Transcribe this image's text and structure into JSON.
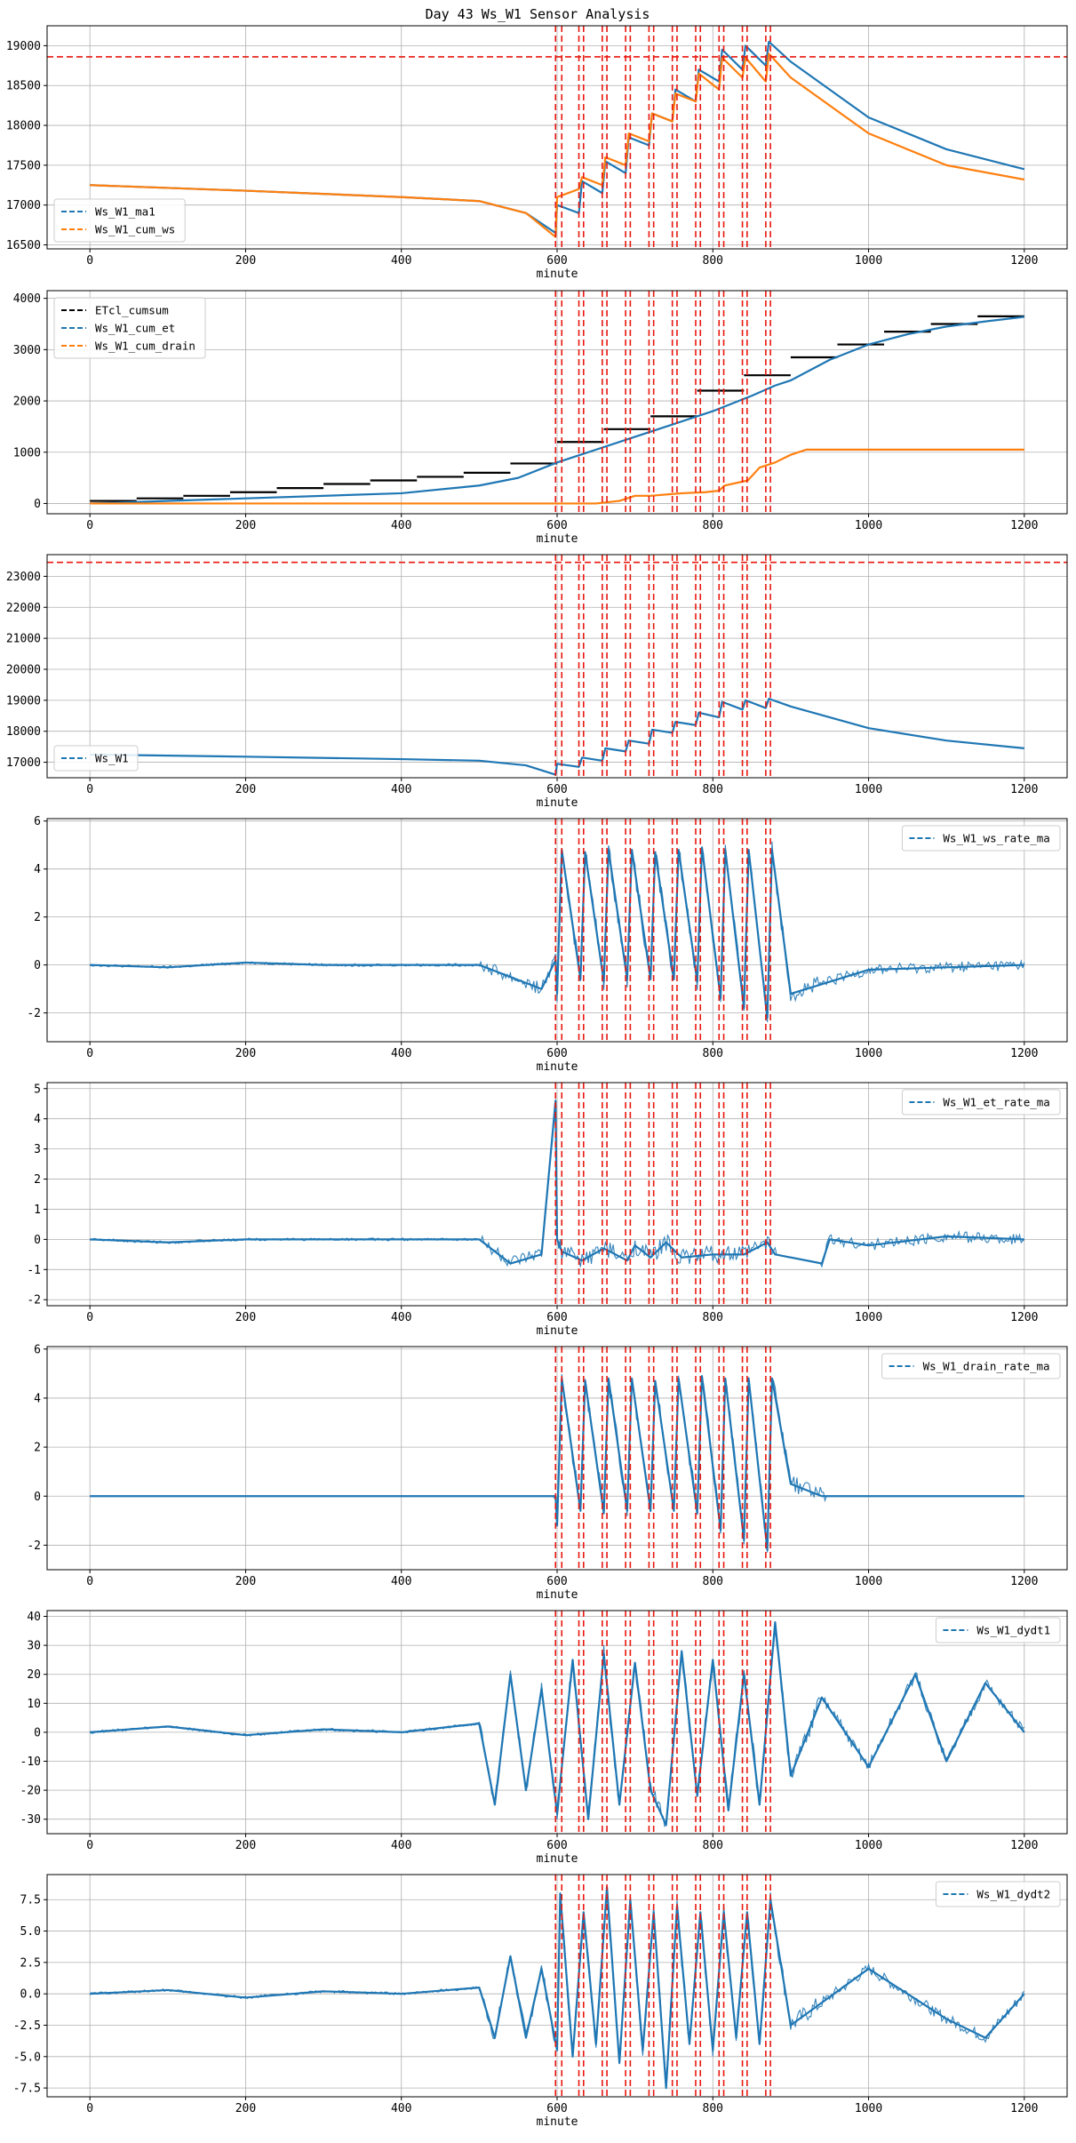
{
  "figure_title": "Day 43 Ws_W1 Sensor Analysis",
  "colors": {
    "blue": "#1f77b4",
    "orange": "#ff7f0e",
    "black": "#000000",
    "red": "#e8170f",
    "grid": "#b0b0b0"
  },
  "event_lines": [
    598,
    606,
    628,
    634,
    658,
    664,
    688,
    694,
    718,
    724,
    748,
    754,
    778,
    784,
    808,
    814,
    838,
    844,
    868,
    874
  ],
  "chart_data": [
    {
      "type": "line",
      "xlabel": "minute",
      "xlim": [
        -55,
        1255
      ],
      "ylim": [
        16450,
        19250
      ],
      "xticks": [
        0,
        200,
        400,
        600,
        800,
        1000,
        1200
      ],
      "xtick_labels": [
        "0",
        "200",
        "400",
        "600",
        "800",
        "1000",
        "1200"
      ],
      "yticks": [
        16500,
        17000,
        17500,
        18000,
        18500,
        19000
      ],
      "ytick_labels": [
        "16500",
        "17000",
        "17500",
        "18000",
        "18500",
        "19000"
      ],
      "hlines": [
        18860
      ],
      "legend": "lower-left",
      "series": [
        {
          "name": "Ws_W1_ma1",
          "color": "blue",
          "x": [
            0,
            200,
            400,
            500,
            560,
            598,
            600,
            628,
            632,
            658,
            662,
            688,
            692,
            718,
            722,
            748,
            752,
            778,
            782,
            808,
            812,
            838,
            842,
            868,
            872,
            900,
            1000,
            1100,
            1200
          ],
          "y": [
            17250,
            17180,
            17100,
            17050,
            16900,
            16650,
            17000,
            16900,
            17300,
            17150,
            17550,
            17400,
            17850,
            17750,
            18150,
            18050,
            18450,
            18300,
            18700,
            18550,
            18950,
            18700,
            19000,
            18750,
            19050,
            18800,
            18100,
            17700,
            17450
          ]
        },
        {
          "name": "Ws_W1_cum_ws",
          "color": "orange",
          "x": [
            0,
            200,
            400,
            500,
            560,
            598,
            600,
            628,
            632,
            658,
            662,
            688,
            692,
            718,
            722,
            748,
            752,
            778,
            782,
            808,
            812,
            838,
            842,
            868,
            872,
            900,
            1000,
            1100,
            1200
          ],
          "y": [
            17250,
            17180,
            17100,
            17050,
            16900,
            16600,
            17100,
            17200,
            17350,
            17250,
            17600,
            17500,
            17900,
            17800,
            18150,
            18050,
            18400,
            18300,
            18650,
            18450,
            18850,
            18600,
            18850,
            18550,
            18900,
            18600,
            17900,
            17500,
            17320
          ]
        }
      ]
    },
    {
      "type": "line",
      "xlabel": "minute",
      "xlim": [
        -55,
        1255
      ],
      "ylim": [
        -200,
        4150
      ],
      "xticks": [
        0,
        200,
        400,
        600,
        800,
        1000,
        1200
      ],
      "xtick_labels": [
        "0",
        "200",
        "400",
        "600",
        "800",
        "1000",
        "1200"
      ],
      "yticks": [
        0,
        1000,
        2000,
        3000,
        4000
      ],
      "ytick_labels": [
        "0",
        "1000",
        "2000",
        "3000",
        "4000"
      ],
      "hlines": [],
      "legend": "upper-left",
      "series": [
        {
          "name": "ETcl_cumsum",
          "color": "black",
          "step": true,
          "x": [
            0,
            60,
            120,
            180,
            240,
            300,
            360,
            420,
            480,
            540,
            600,
            660,
            720,
            780,
            840,
            900,
            960,
            1020,
            1080,
            1140,
            1200
          ],
          "y": [
            50,
            100,
            150,
            220,
            300,
            380,
            450,
            520,
            600,
            780,
            1200,
            1450,
            1700,
            2200,
            2500,
            2850,
            3100,
            3350,
            3500,
            3650,
            3800
          ]
        },
        {
          "name": "Ws_W1_cum_et",
          "color": "blue",
          "x": [
            0,
            200,
            400,
            500,
            550,
            600,
            650,
            700,
            750,
            800,
            850,
            880,
            900,
            950,
            1000,
            1050,
            1100,
            1150,
            1200
          ],
          "y": [
            0,
            100,
            200,
            350,
            500,
            800,
            1050,
            1300,
            1550,
            1800,
            2100,
            2300,
            2400,
            2800,
            3100,
            3300,
            3450,
            3550,
            3640
          ]
        },
        {
          "name": "Ws_W1_cum_drain",
          "color": "orange",
          "x": [
            0,
            650,
            680,
            700,
            720,
            760,
            790,
            808,
            815,
            845,
            860,
            880,
            900,
            920,
            960,
            1000,
            1200
          ],
          "y": [
            0,
            0,
            50,
            150,
            150,
            200,
            220,
            250,
            350,
            450,
            700,
            800,
            950,
            1050,
            1050,
            1050,
            1050
          ]
        }
      ]
    },
    {
      "type": "line",
      "xlabel": "minute",
      "xlim": [
        -55,
        1255
      ],
      "ylim": [
        16500,
        23700
      ],
      "xticks": [
        0,
        200,
        400,
        600,
        800,
        1000,
        1200
      ],
      "xtick_labels": [
        "0",
        "200",
        "400",
        "600",
        "800",
        "1000",
        "1200"
      ],
      "yticks": [
        17000,
        18000,
        19000,
        20000,
        21000,
        22000,
        23000
      ],
      "ytick_labels": [
        "17000",
        "18000",
        "19000",
        "20000",
        "21000",
        "22000",
        "23000"
      ],
      "hlines": [
        23450
      ],
      "legend": "lower-left",
      "series": [
        {
          "name": "Ws_W1",
          "color": "blue",
          "x": [
            0,
            200,
            400,
            500,
            560,
            598,
            600,
            628,
            632,
            658,
            662,
            688,
            692,
            718,
            722,
            748,
            752,
            778,
            782,
            808,
            812,
            838,
            842,
            868,
            872,
            900,
            1000,
            1100,
            1200
          ],
          "y": [
            17250,
            17180,
            17100,
            17050,
            16900,
            16600,
            16950,
            16850,
            17150,
            17050,
            17450,
            17350,
            17700,
            17600,
            18050,
            17950,
            18300,
            18200,
            18600,
            18450,
            18950,
            18700,
            19000,
            18750,
            19050,
            18800,
            18100,
            17700,
            17450
          ]
        }
      ]
    },
    {
      "type": "line",
      "xlabel": "minute",
      "xlim": [
        -55,
        1255
      ],
      "ylim": [
        -3.2,
        6.1
      ],
      "xticks": [
        0,
        200,
        400,
        600,
        800,
        1000,
        1200
      ],
      "xtick_labels": [
        "0",
        "200",
        "400",
        "600",
        "800",
        "1000",
        "1200"
      ],
      "yticks": [
        -2,
        0,
        2,
        4,
        6
      ],
      "ytick_labels": [
        "-2",
        "0",
        "2",
        "4",
        "6"
      ],
      "hlines": [],
      "legend": "upper-right",
      "series": [
        {
          "name": "Ws_W1_ws_rate_ma",
          "color": "blue",
          "x": [
            0,
            100,
            200,
            300,
            400,
            500,
            540,
            580,
            598,
            600,
            606,
            630,
            636,
            660,
            666,
            690,
            696,
            720,
            726,
            750,
            756,
            780,
            786,
            810,
            816,
            840,
            846,
            870,
            876,
            900,
            1000,
            1100,
            1200
          ],
          "y": [
            0,
            -0.1,
            0.1,
            0,
            0,
            0,
            -0.5,
            -1.0,
            0.2,
            -1.2,
            4.8,
            -0.6,
            4.7,
            -0.7,
            4.8,
            -0.6,
            4.8,
            -0.6,
            4.7,
            -0.6,
            4.8,
            -0.7,
            4.9,
            -1.4,
            4.8,
            -1.8,
            4.8,
            -2.2,
            4.8,
            -1.2,
            -0.2,
            -0.1,
            0
          ]
        }
      ]
    },
    {
      "type": "line",
      "xlabel": "minute",
      "xlim": [
        -55,
        1255
      ],
      "ylim": [
        -2.2,
        5.2
      ],
      "xticks": [
        0,
        200,
        400,
        600,
        800,
        1000,
        1200
      ],
      "xtick_labels": [
        "0",
        "200",
        "400",
        "600",
        "800",
        "1000",
        "1200"
      ],
      "yticks": [
        -2,
        -1,
        0,
        1,
        2,
        3,
        4,
        5
      ],
      "ytick_labels": [
        "-2",
        "-1",
        "0",
        "1",
        "2",
        "3",
        "4",
        "5"
      ],
      "hlines": [],
      "legend": "upper-right",
      "series": [
        {
          "name": "Ws_W1_et_rate_ma",
          "color": "blue",
          "x": [
            0,
            100,
            200,
            300,
            400,
            500,
            540,
            580,
            598,
            600,
            606,
            632,
            660,
            690,
            700,
            720,
            740,
            760,
            800,
            840,
            870,
            880,
            940,
            950,
            1000,
            1100,
            1200
          ],
          "y": [
            0,
            -0.1,
            0,
            0,
            0,
            0,
            -0.8,
            -0.5,
            4.6,
            0,
            -0.4,
            -0.7,
            -0.3,
            -0.7,
            -0.2,
            -0.6,
            -0.1,
            -0.6,
            -0.5,
            -0.5,
            -0.1,
            -0.5,
            -0.8,
            0,
            -0.2,
            0.1,
            0
          ]
        }
      ]
    },
    {
      "type": "line",
      "xlabel": "minute",
      "xlim": [
        -55,
        1255
      ],
      "ylim": [
        -3.0,
        6.1
      ],
      "xticks": [
        0,
        200,
        400,
        600,
        800,
        1000,
        1200
      ],
      "xtick_labels": [
        "0",
        "200",
        "400",
        "600",
        "800",
        "1000",
        "1200"
      ],
      "yticks": [
        -2,
        0,
        2,
        4,
        6
      ],
      "ytick_labels": [
        "-2",
        "0",
        "2",
        "4",
        "6"
      ],
      "hlines": [],
      "legend": "upper-right",
      "series": [
        {
          "name": "Ws_W1_drain_rate_ma",
          "color": "blue",
          "x": [
            0,
            598,
            600,
            606,
            630,
            636,
            660,
            666,
            690,
            696,
            720,
            726,
            750,
            756,
            780,
            786,
            810,
            816,
            840,
            846,
            870,
            876,
            900,
            940,
            950,
            1200
          ],
          "y": [
            0,
            0,
            -1.2,
            4.8,
            -0.6,
            4.7,
            -0.7,
            4.8,
            -0.6,
            4.8,
            -0.6,
            4.7,
            -0.6,
            4.8,
            -0.7,
            4.9,
            -1.4,
            4.8,
            -1.8,
            4.8,
            -2.2,
            4.8,
            0.5,
            0,
            0,
            0
          ]
        }
      ]
    },
    {
      "type": "line",
      "xlabel": "minute",
      "xlim": [
        -55,
        1255
      ],
      "ylim": [
        -35,
        42
      ],
      "xticks": [
        0,
        200,
        400,
        600,
        800,
        1000,
        1200
      ],
      "xtick_labels": [
        "0",
        "200",
        "400",
        "600",
        "800",
        "1000",
        "1200"
      ],
      "yticks": [
        -30,
        -20,
        -10,
        0,
        10,
        20,
        30,
        40
      ],
      "ytick_labels": [
        "-30",
        "-20",
        "-10",
        "0",
        "10",
        "20",
        "30",
        "40"
      ],
      "hlines": [],
      "legend": "upper-right",
      "series": [
        {
          "name": "Ws_W1_dydt1",
          "color": "blue",
          "x": [
            0,
            100,
            200,
            300,
            400,
            500,
            520,
            540,
            560,
            580,
            600,
            620,
            640,
            660,
            680,
            700,
            720,
            740,
            760,
            780,
            800,
            820,
            840,
            860,
            880,
            900,
            940,
            1000,
            1060,
            1100,
            1150,
            1200
          ],
          "y": [
            0,
            2,
            -1,
            1,
            0,
            3,
            -25,
            20,
            -20,
            15,
            -28,
            25,
            -30,
            27,
            -25,
            24,
            -20,
            -32,
            28,
            -22,
            25,
            -27,
            20,
            -25,
            38,
            -15,
            12,
            -12,
            20,
            -10,
            17,
            0
          ]
        }
      ]
    },
    {
      "type": "line",
      "xlabel": "minute",
      "xlim": [
        -55,
        1255
      ],
      "ylim": [
        -8.2,
        9.5
      ],
      "xticks": [
        0,
        200,
        400,
        600,
        800,
        1000,
        1200
      ],
      "xtick_labels": [
        "0",
        "200",
        "400",
        "600",
        "800",
        "1000",
        "1200"
      ],
      "yticks": [
        -7.5,
        -5.0,
        -2.5,
        0.0,
        2.5,
        5.0,
        7.5
      ],
      "ytick_labels": [
        "-7.5",
        "-5.0",
        "-2.5",
        "0.0",
        "2.5",
        "5.0",
        "7.5"
      ],
      "hlines": [],
      "legend": "upper-right",
      "series": [
        {
          "name": "Ws_W1_dydt2",
          "color": "blue",
          "x": [
            0,
            100,
            200,
            300,
            400,
            500,
            520,
            540,
            560,
            580,
            600,
            604,
            620,
            634,
            650,
            664,
            680,
            694,
            710,
            724,
            740,
            754,
            770,
            784,
            800,
            814,
            830,
            844,
            860,
            874,
            900,
            1000,
            1100,
            1150,
            1200
          ],
          "y": [
            0,
            0.3,
            -0.3,
            0.2,
            0,
            0.5,
            -3.5,
            3,
            -3.5,
            2,
            -4.5,
            8,
            -5,
            6.5,
            -4,
            8.5,
            -5.5,
            7.5,
            -4.5,
            6.5,
            -7.5,
            7,
            -4,
            6.5,
            -4.5,
            6.5,
            -3.5,
            6.5,
            -4,
            7.5,
            -2.5,
            2,
            -2,
            -3.5,
            0
          ]
        }
      ]
    }
  ]
}
